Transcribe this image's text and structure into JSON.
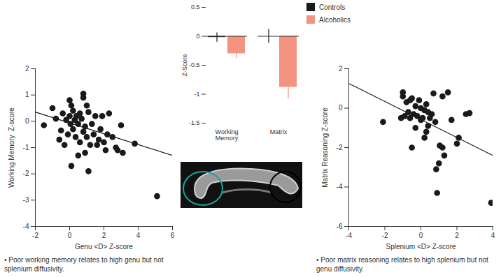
{
  "chart_data": [
    {
      "type": "scatter",
      "x_label": "Genu <D> Z-score",
      "y_label": "Working Memory  Z-score",
      "color": "#1a1a1a",
      "marker": "circle",
      "x": [
        -1.5,
        -1,
        -0.8,
        -0.6,
        -0.5,
        -0.4,
        -0.3,
        -0.2,
        -0.1,
        0,
        0,
        0.05,
        0.1,
        0.1,
        0.2,
        0.2,
        0.3,
        0.35,
        0.4,
        0.5,
        0.5,
        0.6,
        0.6,
        0.7,
        0.8,
        0.8,
        0.8,
        0.9,
        0.9,
        1,
        1,
        1.1,
        1.1,
        1.2,
        1.3,
        1.4,
        1.5,
        1.6,
        1.7,
        1.8,
        1.9,
        2,
        2.1,
        2.2,
        2.3,
        2.5,
        2.7,
        2.8,
        3,
        3.1,
        3.8,
        5.1
      ],
      "values": [
        -0.15,
        0.5,
        0.1,
        -0.7,
        -0.35,
        0.3,
        -0.9,
        0.05,
        -0.5,
        0.8,
        0.2,
        -0.1,
        0.6,
        -1.7,
        -0.3,
        0.4,
        0.05,
        -0.6,
        0.2,
        -0.1,
        -1.3,
        0.3,
        -0.8,
        0.1,
        1.05,
        0.9,
        -0.4,
        -0.2,
        -1.2,
        0.6,
        -0.6,
        -1.9,
        0.35,
        -0.9,
        -0.1,
        -0.5,
        0.2,
        -0.9,
        -0.7,
        -0.3,
        0.2,
        -0.8,
        -1.1,
        -0.5,
        0.3,
        -0.6,
        -1.0,
        -1.1,
        -0.15,
        -1.2,
        -0.85,
        -2.85
      ],
      "fit_line": {
        "x": [
          -2,
          6
        ],
        "values": [
          0.35,
          -1.3
        ]
      },
      "xlim": [
        -2,
        6
      ],
      "xticks": [
        -2,
        0,
        2,
        4,
        6
      ],
      "ylim": [
        -4,
        2
      ],
      "yticks": [
        -4,
        -3,
        -2,
        -1,
        0,
        1,
        2
      ],
      "annotation": "• Poor working memory relates to high genu but not splenium diffusivity."
    },
    {
      "type": "bar",
      "y_label": "Z-Score",
      "categories": [
        "Working Memory",
        "Matrix"
      ],
      "series": [
        {
          "name": "Controls",
          "color": "#1a1a1a",
          "values": [
            -0.02,
            0.0
          ],
          "errors": [
            0.08,
            0.12
          ]
        },
        {
          "name": "Alcoholics",
          "color": "#f4937f",
          "values": [
            -0.3,
            -0.88
          ],
          "errors": [
            0.08,
            0.2
          ]
        }
      ],
      "ylim": [
        -1.5,
        0.5
      ],
      "yticks": [
        -1.5,
        -1,
        -0.5,
        0,
        0.5
      ],
      "legend": "top-right"
    },
    {
      "type": "scatter",
      "x_label": "Splenium <D> Z-score",
      "y_label": "Matrix Reasoning Z-score",
      "color": "#1a1a1a",
      "marker": "circle",
      "x": [
        -2.1,
        0.9,
        0.85,
        1.0,
        1.05,
        1.2,
        1.3,
        1.5,
        1.2,
        2.0,
        2.1,
        2.5,
        2.7,
        3.9,
        1.7,
        -0.5,
        0.7,
        0.3,
        -1,
        -1,
        -0.8,
        -0.7,
        -0.6,
        -0.5,
        -0.4,
        -0.3,
        -0.2,
        -0.1,
        0,
        0,
        0.1,
        0.2,
        0.2,
        0.3,
        0.4,
        0.5,
        0.6,
        0.8,
        -1.1,
        -0.9,
        -0.3,
        0.4,
        -0.6
      ],
      "values": [
        -0.7,
        -4.3,
        -3.1,
        -2.8,
        -1.9,
        -2.0,
        -2.4,
        0.8,
        0.6,
        -1.8,
        -1.5,
        -0.3,
        -0.25,
        -4.8,
        -0.6,
        -2.0,
        0.75,
        -1.2,
        0.6,
        0.8,
        0.3,
        -0.2,
        -0.5,
        0.5,
        -0.3,
        0.1,
        -0.4,
        0.4,
        -0.6,
        0,
        -0.5,
        -0.1,
        -1.5,
        0.2,
        -0.9,
        -0.5,
        -0.3,
        -0.7,
        -0.5,
        -0.4,
        -1.0,
        -0.2,
        0.4
      ],
      "fit_line": {
        "x": [
          -4,
          4
        ],
        "values": [
          1.25,
          -2.4
        ]
      },
      "xlim": [
        -4,
        4
      ],
      "xticks": [
        -4,
        -2,
        0,
        2,
        4
      ],
      "ylim": [
        -6,
        2
      ],
      "yticks": [
        -6,
        -4,
        -2,
        0,
        2
      ],
      "annotation": "• Poor matrix reasoning relates to high splenium but not genu diffusivity."
    }
  ]
}
